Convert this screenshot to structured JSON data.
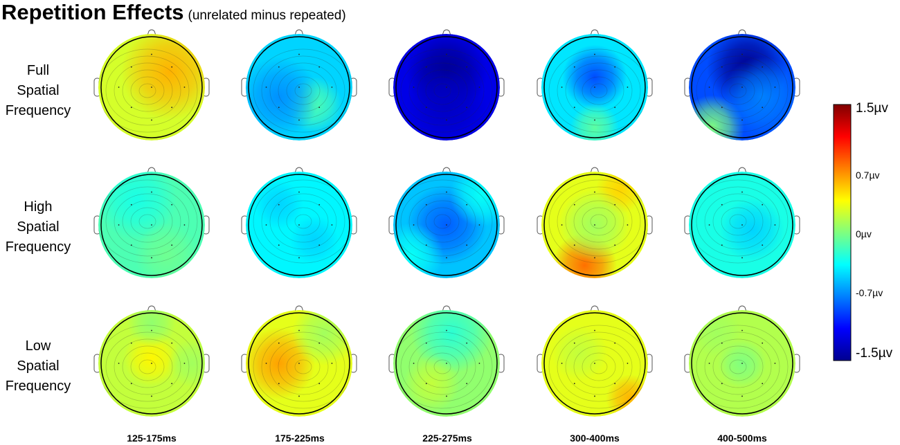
{
  "title": {
    "main": "Repetition Effects",
    "subtitle": "(unrelated minus repeated)"
  },
  "rows": [
    {
      "lines": [
        "Full",
        "Spatial",
        "Frequency"
      ]
    },
    {
      "lines": [
        "High",
        "Spatial",
        "Frequency"
      ]
    },
    {
      "lines": [
        "Low",
        "Spatial",
        "Frequency"
      ]
    }
  ],
  "time_windows": [
    "125-175ms",
    "175-225ms",
    "225-275ms",
    "300-400ms",
    "400-500ms"
  ],
  "colorbar": {
    "labels": [
      "1.5µv",
      "0.7µv",
      "0µv",
      "-0.7µv",
      "-1.5µv"
    ],
    "min": -1.5,
    "max": 1.5,
    "colormap": "jet"
  },
  "topomaps": [
    [
      {
        "base": 0.25,
        "blobs": [
          [
            0.35,
            0.3,
            0.6,
            0.35
          ]
        ]
      },
      {
        "base": -0.5,
        "blobs": [
          [
            0.3,
            -0.35,
            0.35,
            0.35
          ],
          [
            -0.4,
            -0.2,
            0.5,
            -0.2
          ]
        ]
      },
      {
        "base": -1.2,
        "blobs": [
          [
            0.0,
            0.3,
            0.5,
            -0.25
          ],
          [
            0.0,
            -0.35,
            0.5,
            -0.1
          ]
        ]
      },
      {
        "base": -0.45,
        "blobs": [
          [
            0.0,
            0.2,
            0.4,
            -0.45
          ],
          [
            0.0,
            -0.8,
            0.3,
            0.35
          ]
        ]
      },
      {
        "base": -0.9,
        "blobs": [
          [
            0.1,
            0.4,
            0.5,
            -0.55
          ],
          [
            -0.6,
            -0.8,
            0.4,
            0.9
          ],
          [
            0.4,
            -0.2,
            0.5,
            0.15
          ]
        ]
      }
    ],
    [
      {
        "base": -0.15,
        "blobs": [
          [
            -0.3,
            0.5,
            0.5,
            -0.15
          ],
          [
            0.3,
            -0.6,
            0.4,
            0.1
          ]
        ]
      },
      {
        "base": -0.4,
        "blobs": [
          [
            0.3,
            -0.3,
            0.3,
            -0.1
          ],
          [
            -0.4,
            0.4,
            0.3,
            -0.1
          ]
        ]
      },
      {
        "base": -0.55,
        "blobs": [
          [
            0.0,
            0.0,
            0.5,
            -0.3
          ],
          [
            -0.7,
            -0.6,
            0.4,
            0.2
          ],
          [
            0.7,
            0.6,
            0.4,
            0.2
          ]
        ]
      },
      {
        "base": 0.3,
        "blobs": [
          [
            -0.2,
            -0.8,
            0.4,
            0.5
          ],
          [
            0.5,
            0.7,
            0.3,
            0.2
          ],
          [
            0.0,
            0.0,
            0.45,
            -0.2
          ]
        ]
      },
      {
        "base": -0.3,
        "blobs": [
          [
            0.2,
            -0.1,
            0.4,
            -0.2
          ]
        ]
      }
    ],
    [
      {
        "base": 0.2,
        "blobs": [
          [
            0.0,
            0.1,
            0.35,
            0.2
          ],
          [
            0.0,
            0.8,
            0.3,
            -0.15
          ],
          [
            0.8,
            0.0,
            0.3,
            -0.1
          ]
        ]
      },
      {
        "base": 0.3,
        "blobs": [
          [
            -0.4,
            0.0,
            0.45,
            0.35
          ],
          [
            0.5,
            0.6,
            0.4,
            -0.2
          ]
        ]
      },
      {
        "base": 0.05,
        "blobs": [
          [
            0.1,
            0.6,
            0.5,
            -0.3
          ],
          [
            -0.3,
            -0.4,
            0.35,
            0.15
          ]
        ]
      },
      {
        "base": 0.3,
        "blobs": [
          [
            0.7,
            -0.7,
            0.3,
            0.3
          ],
          [
            -0.3,
            0.2,
            0.35,
            -0.1
          ]
        ]
      },
      {
        "base": 0.15,
        "blobs": [
          [
            0.0,
            0.0,
            0.3,
            -0.15
          ],
          [
            -0.5,
            0.6,
            0.3,
            -0.05
          ]
        ]
      }
    ]
  ]
}
